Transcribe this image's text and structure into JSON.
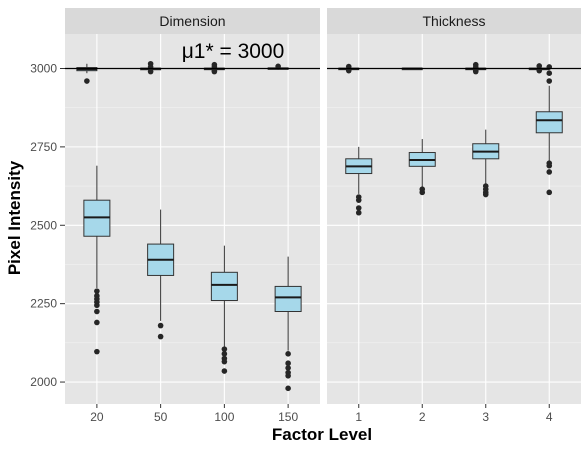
{
  "chart_data": {
    "type": "boxplot",
    "xlabel": "Factor Level",
    "ylabel": "Pixel Intensity",
    "annotation": "μ1* = 3000",
    "reference_line": 3000,
    "ylim": [
      1930,
      3110
    ],
    "yticks": [
      2000,
      2250,
      2500,
      2750,
      3000
    ],
    "ytick_labels": [
      "2000",
      "2250",
      "2500",
      "2750",
      "3000"
    ],
    "box_fill": "#a6d8ea",
    "panel_bg": "#e5e5e5",
    "strip_bg": "#d9d9d9",
    "grid": true,
    "panels": [
      {
        "title": "Dimension",
        "categories": [
          "20",
          "50",
          "100",
          "150"
        ],
        "series": [
          {
            "category": "20",
            "q1": 2465,
            "median": 2525,
            "q3": 2580,
            "whisker_low": 2300,
            "whisker_high": 2690,
            "outliers": [
              2290,
              2275,
              2265,
              2255,
              2245,
              2225,
              2190,
              2097
            ]
          },
          {
            "category": "50",
            "q1": 2340,
            "median": 2390,
            "q3": 2440,
            "whisker_low": 2195,
            "whisker_high": 2550,
            "outliers": [
              2180,
              2145
            ]
          },
          {
            "category": "100",
            "q1": 2260,
            "median": 2310,
            "q3": 2350,
            "whisker_low": 2110,
            "whisker_high": 2435,
            "outliers": [
              2105,
              2090,
              2075,
              2065,
              2035
            ]
          },
          {
            "category": "150",
            "q1": 2225,
            "median": 2270,
            "q3": 2305,
            "whisker_low": 2100,
            "whisker_high": 2400,
            "outliers": [
              2090,
              2060,
              2045,
              2030,
              2020,
              1980
            ]
          }
        ],
        "top_cluster": [
          {
            "category": "20",
            "q1": 2993,
            "median": 2998,
            "q3": 3003,
            "whisker_low": 2985,
            "whisker_high": 3015,
            "outliers": [
              2960
            ]
          },
          {
            "category": "50",
            "q1": 2996,
            "median": 2999,
            "q3": 3001,
            "whisker_low": 2994,
            "whisker_high": 3004,
            "outliers": [
              3015,
              3005,
              2990
            ]
          },
          {
            "category": "100",
            "q1": 2997,
            "median": 2999,
            "q3": 3001,
            "whisker_low": 2995,
            "whisker_high": 3003,
            "outliers": [
              3012,
              3005,
              2994,
              2990
            ]
          },
          {
            "category": "150",
            "q1": 2998,
            "median": 3000,
            "q3": 3002,
            "whisker_low": 2996,
            "whisker_high": 3004,
            "outliers": [
              3007
            ]
          }
        ]
      },
      {
        "title": "Thickness",
        "categories": [
          "1",
          "2",
          "3",
          "4"
        ],
        "series": [
          {
            "category": "1",
            "q1": 2665,
            "median": 2688,
            "q3": 2712,
            "whisker_low": 2600,
            "whisker_high": 2750,
            "outliers": [
              2590,
              2580,
              2555,
              2540
            ]
          },
          {
            "category": "2",
            "q1": 2688,
            "median": 2708,
            "q3": 2732,
            "whisker_low": 2620,
            "whisker_high": 2775,
            "outliers": [
              2615,
              2605
            ]
          },
          {
            "category": "3",
            "q1": 2712,
            "median": 2735,
            "q3": 2760,
            "whisker_low": 2630,
            "whisker_high": 2805,
            "outliers": [
              2625,
              2615,
              2605,
              2598
            ]
          },
          {
            "category": "4",
            "q1": 2795,
            "median": 2835,
            "q3": 2862,
            "whisker_low": 2700,
            "whisker_high": 2945,
            "outliers": [
              3005,
              2985,
              2960,
              2698,
              2690,
              2670,
              2605
            ]
          }
        ],
        "top_cluster": [
          {
            "category": "1",
            "q1": 2997,
            "median": 2999,
            "q3": 3001,
            "whisker_low": 2994,
            "whisker_high": 3004,
            "outliers": [
              3006,
              2993
            ]
          },
          {
            "category": "2",
            "q1": 2999,
            "median": 3000,
            "q3": 3001,
            "whisker_low": 2998,
            "whisker_high": 3002,
            "outliers": []
          },
          {
            "category": "3",
            "q1": 2997,
            "median": 2999,
            "q3": 3001,
            "whisker_low": 2994,
            "whisker_high": 3004,
            "outliers": [
              3012,
              3004,
              2993,
              2990
            ]
          },
          {
            "category": "4",
            "q1": 2997,
            "median": 2999,
            "q3": 3001,
            "whisker_low": 2994,
            "whisker_high": 3004,
            "outliers": [
              3008,
              2993
            ]
          }
        ]
      }
    ]
  }
}
